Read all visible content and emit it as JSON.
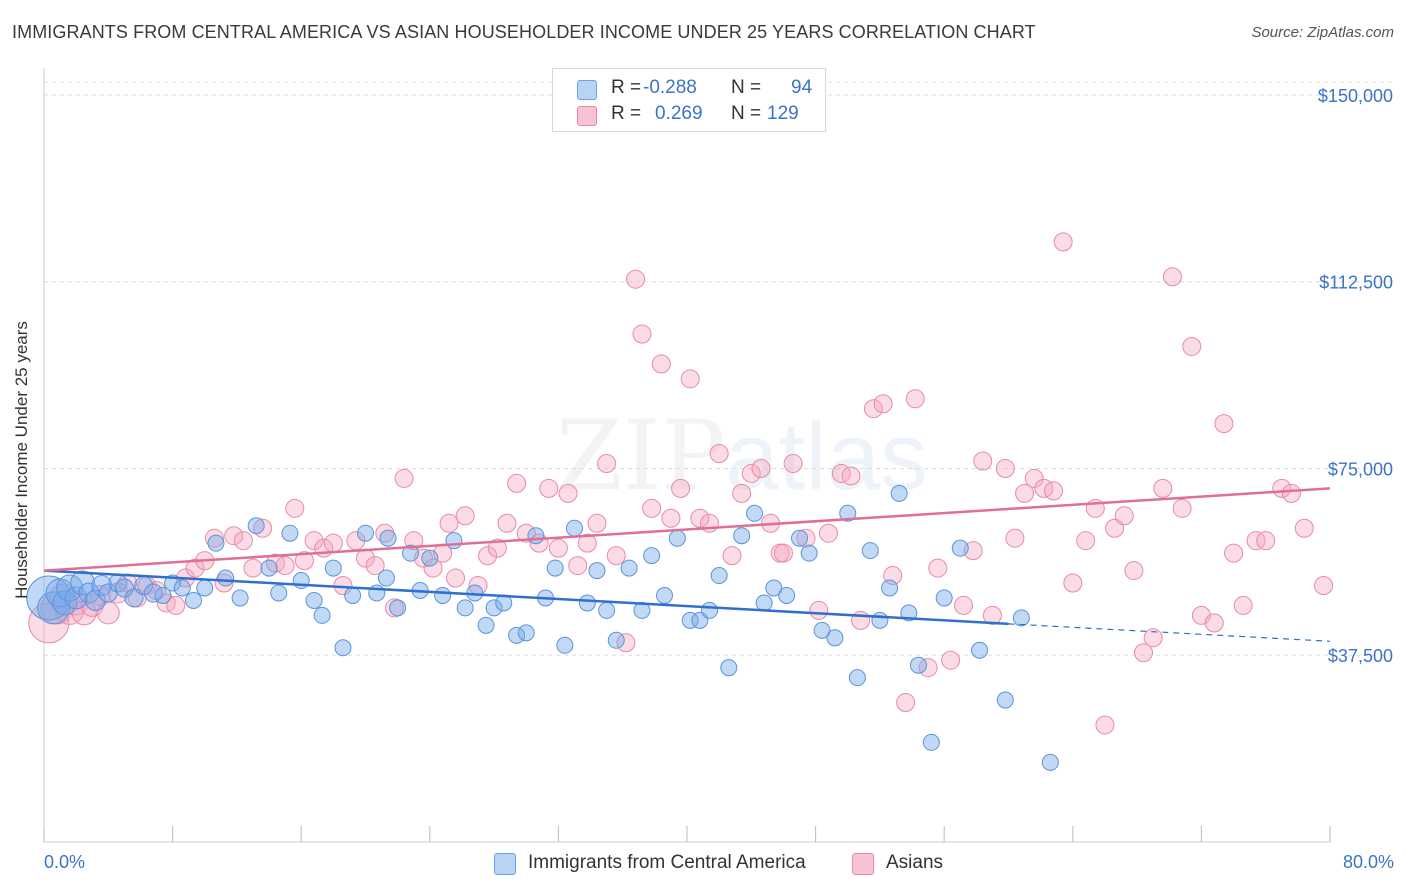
{
  "header": {
    "title": "IMMIGRANTS FROM CENTRAL AMERICA VS ASIAN HOUSEHOLDER INCOME UNDER 25 YEARS CORRELATION CHART",
    "source": "Source: ZipAtlas.com"
  },
  "watermark": {
    "zip": "ZIP",
    "atlas": "atlas"
  },
  "legend": {
    "rows": [
      {
        "r_label": "R =",
        "r_value": "-0.288",
        "n_label": "N =",
        "n_value": "94",
        "color": "#6fa3e6",
        "fill": "#b9d3f5"
      },
      {
        "r_label": "R =",
        "r_value": "0.269",
        "n_label": "N =",
        "n_value": "129",
        "color": "#e88aa8",
        "fill": "#f7c3d3"
      }
    ]
  },
  "chart_data": {
    "type": "scatter",
    "title": "IMMIGRANTS FROM CENTRAL AMERICA VS ASIAN HOUSEHOLDER INCOME UNDER 25 YEARS CORRELATION CHART",
    "xlabel": "",
    "ylabel": "Householder Income Under 25 years",
    "x_tick_labels": [
      "0.0%",
      "80.0%"
    ],
    "y_tick_labels": [
      "$37,500",
      "$75,000",
      "$112,500",
      "$150,000"
    ],
    "y_tick_values": [
      37500,
      75000,
      112500,
      150000
    ],
    "xlim": [
      0,
      80
    ],
    "ylim": [
      0,
      153000
    ],
    "grid": "horizontal dashed",
    "legend_position": "top-center",
    "series": [
      {
        "name": "Immigrants from Central America",
        "color": "#5b93dc",
        "fill": "rgba(120,170,235,0.45)",
        "trend": {
          "x": [
            0,
            60
          ],
          "y": [
            54500,
            43800
          ],
          "dashed_to_x": 80,
          "dashed_to_y": 40300,
          "color": "#2f6fcf"
        },
        "points": [
          [
            0.3,
            49000,
            22
          ],
          [
            0.6,
            47000,
            16
          ],
          [
            1.0,
            50000,
            14
          ],
          [
            1.3,
            48000,
            12
          ],
          [
            1.6,
            51000,
            13
          ],
          [
            2.0,
            49000,
            11
          ],
          [
            2.4,
            52000,
            12
          ],
          [
            2.8,
            50000,
            10
          ],
          [
            3.2,
            48500,
            10
          ],
          [
            3.6,
            51500,
            10
          ],
          [
            4.0,
            50000,
            9
          ],
          [
            4.6,
            52000,
            9
          ],
          [
            5.0,
            51000,
            9
          ],
          [
            5.6,
            49000,
            9
          ],
          [
            6.2,
            51500,
            9
          ],
          [
            6.8,
            50000,
            9
          ],
          [
            7.4,
            49500,
            8
          ],
          [
            8.0,
            52000,
            8
          ],
          [
            8.6,
            51000,
            8
          ],
          [
            9.3,
            48500,
            8
          ],
          [
            10.0,
            51000,
            8
          ],
          [
            10.7,
            60000,
            8
          ],
          [
            11.3,
            53000,
            8
          ],
          [
            12.2,
            49000,
            8
          ],
          [
            13.2,
            63500,
            8
          ],
          [
            14.0,
            55000,
            8
          ],
          [
            14.6,
            50000,
            8
          ],
          [
            15.3,
            62000,
            8
          ],
          [
            16.0,
            52500,
            8
          ],
          [
            16.8,
            48500,
            8
          ],
          [
            17.3,
            45500,
            8
          ],
          [
            18.0,
            55000,
            8
          ],
          [
            18.6,
            39000,
            8
          ],
          [
            19.2,
            49500,
            8
          ],
          [
            20.0,
            62000,
            8
          ],
          [
            20.7,
            50000,
            8
          ],
          [
            21.3,
            53000,
            8
          ],
          [
            22.0,
            47000,
            8
          ],
          [
            22.8,
            58000,
            8
          ],
          [
            23.4,
            50500,
            8
          ],
          [
            24.0,
            57000,
            8
          ],
          [
            24.8,
            49500,
            8
          ],
          [
            25.5,
            60500,
            8
          ],
          [
            26.2,
            47000,
            8
          ],
          [
            26.8,
            50000,
            8
          ],
          [
            27.5,
            43500,
            8
          ],
          [
            28.0,
            47000,
            8
          ],
          [
            28.6,
            48000,
            8
          ],
          [
            29.4,
            41500,
            8
          ],
          [
            30.0,
            42000,
            8
          ],
          [
            30.6,
            61500,
            8
          ],
          [
            31.2,
            49000,
            8
          ],
          [
            31.8,
            55000,
            8
          ],
          [
            32.4,
            39500,
            8
          ],
          [
            33.0,
            63000,
            8
          ],
          [
            33.8,
            48000,
            8
          ],
          [
            34.4,
            54500,
            8
          ],
          [
            35.0,
            46500,
            8
          ],
          [
            35.6,
            40500,
            8
          ],
          [
            36.4,
            55000,
            8
          ],
          [
            37.2,
            46500,
            8
          ],
          [
            37.8,
            57500,
            8
          ],
          [
            38.6,
            49500,
            8
          ],
          [
            39.4,
            61000,
            8
          ],
          [
            40.2,
            44500,
            8
          ],
          [
            40.8,
            44500,
            8
          ],
          [
            41.4,
            46500,
            8
          ],
          [
            42.0,
            53500,
            8
          ],
          [
            42.6,
            35000,
            8
          ],
          [
            43.4,
            61500,
            8
          ],
          [
            44.2,
            66000,
            8
          ],
          [
            44.8,
            48000,
            8
          ],
          [
            45.4,
            51000,
            8
          ],
          [
            46.2,
            49500,
            8
          ],
          [
            47.0,
            61000,
            8
          ],
          [
            47.6,
            58000,
            8
          ],
          [
            48.4,
            42500,
            8
          ],
          [
            49.2,
            41000,
            8
          ],
          [
            50.0,
            66000,
            8
          ],
          [
            50.6,
            33000,
            8
          ],
          [
            51.4,
            58500,
            8
          ],
          [
            52.0,
            44500,
            8
          ],
          [
            52.6,
            51000,
            8
          ],
          [
            53.2,
            70000,
            8
          ],
          [
            53.8,
            46000,
            8
          ],
          [
            54.4,
            35500,
            8
          ],
          [
            55.2,
            20000,
            8
          ],
          [
            56.0,
            49000,
            8
          ],
          [
            57.0,
            59000,
            8
          ],
          [
            58.2,
            38500,
            8
          ],
          [
            59.8,
            28500,
            8
          ],
          [
            60.8,
            45000,
            8
          ],
          [
            62.6,
            16000,
            8
          ],
          [
            21.4,
            61000,
            8
          ]
        ]
      },
      {
        "name": "Asians",
        "color": "#e88aa8",
        "fill": "rgba(245,165,190,0.40)",
        "trend": {
          "x": [
            0,
            80
          ],
          "y": [
            54500,
            71000
          ],
          "color": "#e06f96"
        },
        "points": [
          [
            0.3,
            44000,
            20
          ],
          [
            0.8,
            47000,
            16
          ],
          [
            1.2,
            49000,
            14
          ],
          [
            1.6,
            46500,
            14
          ],
          [
            2.0,
            48000,
            12
          ],
          [
            2.5,
            46000,
            12
          ],
          [
            3.0,
            47500,
            11
          ],
          [
            3.5,
            49500,
            10
          ],
          [
            4.0,
            46000,
            11
          ],
          [
            4.6,
            50000,
            10
          ],
          [
            5.2,
            52000,
            9
          ],
          [
            5.8,
            49000,
            9
          ],
          [
            6.4,
            51500,
            9
          ],
          [
            7.0,
            50500,
            9
          ],
          [
            7.6,
            48000,
            9
          ],
          [
            8.2,
            47500,
            9
          ],
          [
            8.8,
            53000,
            9
          ],
          [
            9.4,
            55000,
            9
          ],
          [
            10.0,
            56500,
            9
          ],
          [
            10.6,
            61000,
            9
          ],
          [
            11.2,
            52000,
            9
          ],
          [
            11.8,
            61500,
            9
          ],
          [
            12.4,
            60500,
            9
          ],
          [
            13.0,
            55000,
            9
          ],
          [
            13.6,
            63000,
            9
          ],
          [
            14.4,
            56000,
            9
          ],
          [
            15.0,
            55500,
            9
          ],
          [
            15.6,
            67000,
            9
          ],
          [
            16.2,
            56500,
            9
          ],
          [
            16.8,
            60500,
            9
          ],
          [
            17.4,
            59000,
            9
          ],
          [
            18.0,
            60000,
            9
          ],
          [
            18.6,
            51500,
            9
          ],
          [
            19.4,
            60500,
            9
          ],
          [
            20.0,
            57000,
            9
          ],
          [
            20.6,
            55500,
            9
          ],
          [
            21.2,
            62000,
            9
          ],
          [
            21.8,
            47000,
            9
          ],
          [
            22.4,
            73000,
            9
          ],
          [
            23.0,
            60500,
            9
          ],
          [
            23.6,
            57000,
            9
          ],
          [
            24.2,
            55000,
            9
          ],
          [
            24.8,
            58000,
            9
          ],
          [
            25.6,
            53000,
            9
          ],
          [
            26.2,
            65500,
            9
          ],
          [
            27.0,
            51500,
            9
          ],
          [
            27.6,
            57500,
            9
          ],
          [
            28.2,
            59000,
            9
          ],
          [
            28.8,
            64000,
            9
          ],
          [
            29.4,
            72000,
            9
          ],
          [
            30.0,
            62000,
            9
          ],
          [
            30.8,
            60000,
            9
          ],
          [
            31.4,
            71000,
            9
          ],
          [
            32.0,
            59000,
            9
          ],
          [
            32.6,
            70000,
            9
          ],
          [
            33.2,
            55500,
            9
          ],
          [
            33.8,
            60000,
            9
          ],
          [
            34.4,
            64000,
            9
          ],
          [
            35.0,
            76000,
            9
          ],
          [
            35.6,
            57500,
            9
          ],
          [
            36.2,
            40000,
            9
          ],
          [
            36.8,
            113000,
            9
          ],
          [
            37.2,
            102000,
            9
          ],
          [
            37.8,
            67000,
            9
          ],
          [
            38.4,
            96000,
            9
          ],
          [
            39.0,
            65000,
            9
          ],
          [
            39.6,
            71000,
            9
          ],
          [
            40.2,
            93000,
            9
          ],
          [
            40.8,
            65000,
            9
          ],
          [
            41.4,
            64000,
            9
          ],
          [
            42.0,
            78000,
            9
          ],
          [
            42.8,
            57500,
            9
          ],
          [
            43.4,
            70000,
            9
          ],
          [
            44.0,
            74000,
            9
          ],
          [
            44.6,
            75000,
            9
          ],
          [
            45.2,
            64000,
            9
          ],
          [
            45.8,
            58000,
            9
          ],
          [
            46.6,
            76000,
            9
          ],
          [
            47.4,
            61000,
            9
          ],
          [
            48.2,
            46500,
            9
          ],
          [
            48.8,
            62000,
            9
          ],
          [
            49.6,
            74000,
            9
          ],
          [
            50.2,
            73500,
            9
          ],
          [
            50.8,
            44500,
            9
          ],
          [
            51.6,
            87000,
            9
          ],
          [
            52.2,
            88000,
            9
          ],
          [
            52.8,
            53500,
            9
          ],
          [
            53.6,
            28000,
            9
          ],
          [
            54.2,
            89000,
            9
          ],
          [
            55.0,
            35000,
            9
          ],
          [
            55.6,
            55000,
            9
          ],
          [
            56.4,
            36500,
            9
          ],
          [
            57.2,
            47500,
            9
          ],
          [
            57.8,
            58500,
            9
          ],
          [
            58.4,
            76500,
            9
          ],
          [
            59.0,
            45500,
            9
          ],
          [
            59.8,
            75000,
            9
          ],
          [
            60.4,
            61000,
            9
          ],
          [
            61.0,
            70000,
            9
          ],
          [
            61.6,
            73000,
            9
          ],
          [
            62.2,
            71000,
            9
          ],
          [
            62.8,
            70500,
            9
          ],
          [
            63.4,
            120500,
            9
          ],
          [
            64.0,
            52000,
            9
          ],
          [
            64.8,
            60500,
            9
          ],
          [
            65.4,
            67000,
            9
          ],
          [
            66.0,
            23500,
            9
          ],
          [
            66.6,
            63000,
            9
          ],
          [
            67.2,
            65500,
            9
          ],
          [
            67.8,
            54500,
            9
          ],
          [
            68.4,
            38000,
            9
          ],
          [
            69.0,
            41000,
            9
          ],
          [
            69.6,
            71000,
            9
          ],
          [
            70.2,
            113500,
            9
          ],
          [
            70.8,
            67000,
            9
          ],
          [
            71.4,
            99500,
            9
          ],
          [
            72.0,
            45500,
            9
          ],
          [
            72.8,
            44000,
            9
          ],
          [
            73.4,
            84000,
            9
          ],
          [
            74.0,
            58000,
            9
          ],
          [
            74.6,
            47500,
            9
          ],
          [
            75.4,
            60500,
            9
          ],
          [
            76.0,
            60500,
            9
          ],
          [
            77.0,
            71000,
            9
          ],
          [
            77.6,
            70000,
            9
          ],
          [
            78.4,
            63000,
            9
          ],
          [
            79.6,
            51500,
            9
          ],
          [
            25.2,
            64000,
            9
          ],
          [
            46.0,
            58000,
            9
          ]
        ]
      }
    ]
  },
  "bottom_legend": [
    {
      "label": "Immigrants from Central America",
      "color": "#6fa3e6",
      "fill": "#b9d3f5"
    },
    {
      "label": "Asians",
      "color": "#e88aa8",
      "fill": "#f7c3d3"
    }
  ]
}
